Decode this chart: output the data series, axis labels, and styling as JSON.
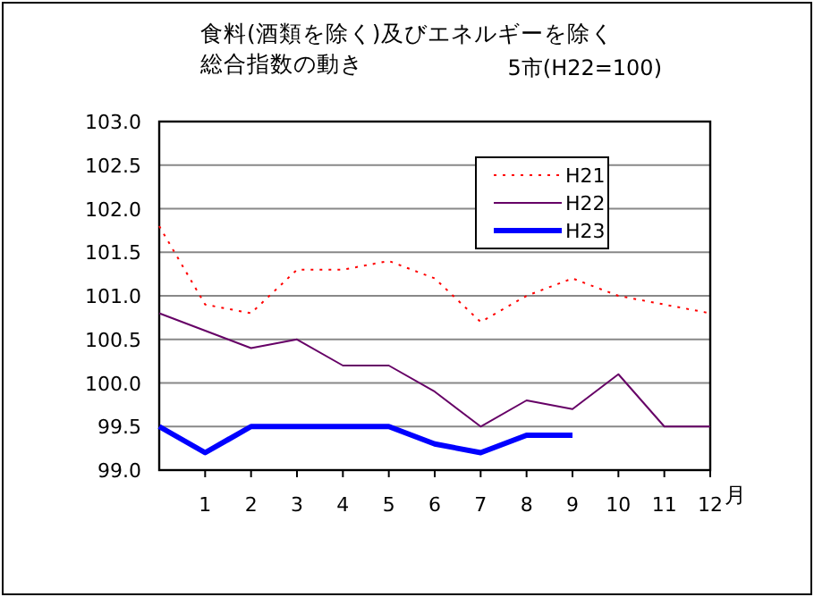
{
  "chart_data": {
    "type": "line",
    "title": "食料(酒類を除く)及びエネルギーを除く総合指数の動き",
    "subtitle": "5市(H22=100)",
    "xlabel": "月",
    "x": [
      0,
      1,
      2,
      3,
      4,
      5,
      6,
      7,
      8,
      9,
      10,
      11,
      12
    ],
    "xlim": [
      0,
      12
    ],
    "xticks": [
      1,
      2,
      3,
      4,
      5,
      6,
      7,
      8,
      9,
      10,
      11,
      12
    ],
    "ylim": [
      99,
      103
    ],
    "yticks": [
      {
        "value": 99,
        "label": "99.0"
      },
      {
        "value": 99.5,
        "label": "99.5"
      },
      {
        "value": 100,
        "label": "100.0"
      },
      {
        "value": 100.5,
        "label": "100.5"
      },
      {
        "value": 101,
        "label": "101.0"
      },
      {
        "value": 101.5,
        "label": "101.5"
      },
      {
        "value": 102,
        "label": "102.0"
      },
      {
        "value": 102.5,
        "label": "102.5"
      },
      {
        "value": 103,
        "label": "103.0"
      }
    ],
    "grid": "y",
    "legend": "top right",
    "series": [
      {
        "name": "H21",
        "color": "#ff0000",
        "line_style": "dotted",
        "values": [
          101.8,
          100.9,
          100.8,
          101.3,
          101.3,
          101.4,
          101.2,
          100.7,
          101.0,
          101.2,
          101.0,
          100.9,
          100.8
        ]
      },
      {
        "name": "H22",
        "color": "#660066",
        "line_style": "solid",
        "values": [
          100.8,
          100.6,
          100.4,
          100.5,
          100.2,
          100.2,
          99.9,
          99.5,
          99.8,
          99.7,
          100.1,
          99.5,
          99.5
        ]
      },
      {
        "name": "H23",
        "color": "#0000ff",
        "line_style": "solid",
        "values": [
          99.5,
          99.2,
          99.5,
          99.5,
          99.5,
          99.5,
          99.3,
          99.2,
          99.4,
          99.4,
          null,
          null,
          null
        ]
      }
    ]
  }
}
